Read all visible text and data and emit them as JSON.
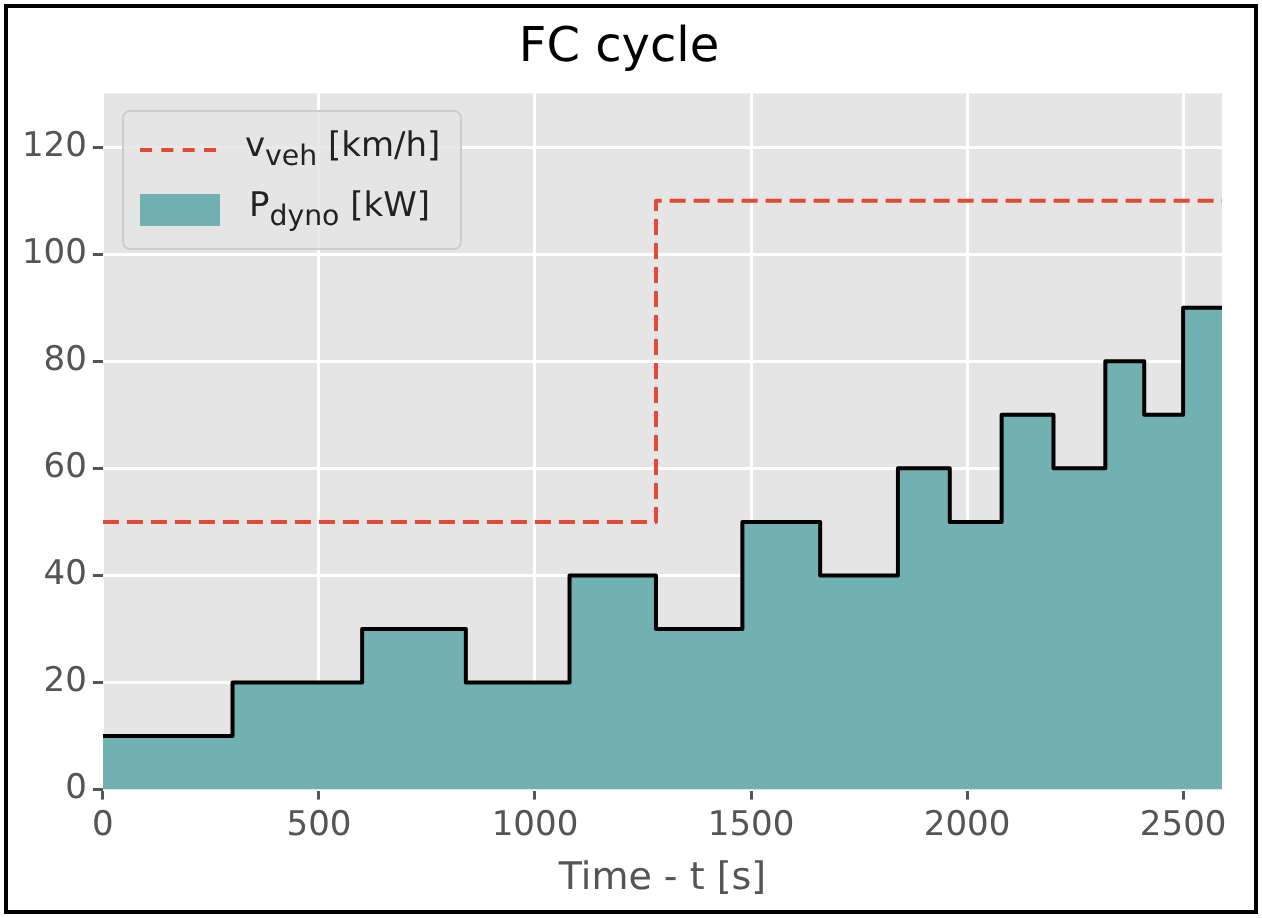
{
  "chart_data": {
    "type": "step",
    "title": "FC cycle",
    "xlabel": "Time - t [s]",
    "xlim": [
      0,
      2590
    ],
    "ylim": [
      0,
      130
    ],
    "xticks": [
      0,
      500,
      1000,
      1500,
      2000,
      2500
    ],
    "yticks": [
      0,
      20,
      40,
      60,
      80,
      100,
      120
    ],
    "grid": true,
    "legend": "top left",
    "series": [
      {
        "name": "v$_{veh}$ [km/h]",
        "type": "step",
        "line_style": "dashed",
        "color": "#e24a33",
        "x": [
          0,
          1280,
          2590
        ],
        "values": [
          50,
          110,
          110
        ]
      },
      {
        "name": "P$_{dyno}$ [kW]",
        "type": "area",
        "color": "#72b1b1",
        "x": [
          0,
          300,
          300,
          600,
          600,
          840,
          840,
          1080,
          1080,
          1280,
          1280,
          1480,
          1480,
          1660,
          1660,
          1840,
          1840,
          1960,
          1960,
          2080,
          2080,
          2200,
          2200,
          2320,
          2320,
          2410,
          2410,
          2500,
          2500,
          2590
        ],
        "values": [
          10,
          10,
          20,
          20,
          30,
          30,
          20,
          20,
          40,
          40,
          30,
          30,
          50,
          50,
          40,
          40,
          60,
          60,
          50,
          50,
          70,
          70,
          60,
          60,
          80,
          80,
          70,
          70,
          90,
          90
        ]
      }
    ]
  }
}
